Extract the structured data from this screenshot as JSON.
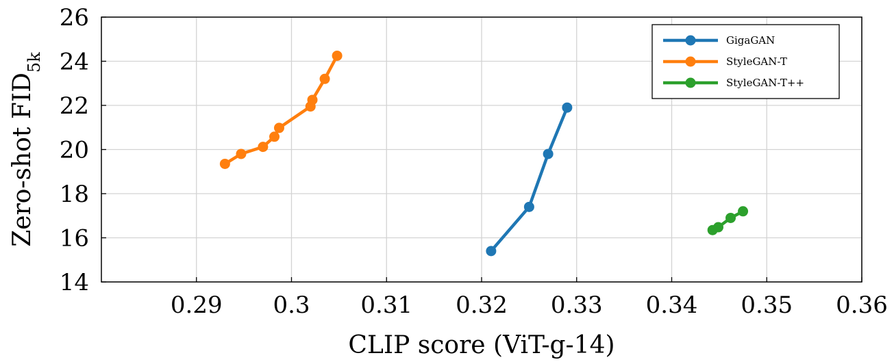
{
  "chart_data": {
    "type": "line",
    "xlabel": "CLIP score (ViT-g-14)",
    "ylabel": {
      "main": "Zero-shot FID",
      "subscript": "5k"
    },
    "xlim": [
      0.28,
      0.36
    ],
    "ylim": [
      14,
      26
    ],
    "xticks": [
      0.29,
      0.3,
      0.31,
      0.32,
      0.33,
      0.34,
      0.35,
      0.36
    ],
    "xtick_labels": [
      "0.29",
      "0.3",
      "0.31",
      "0.32",
      "0.33",
      "0.34",
      "0.35",
      "0.36"
    ],
    "yticks": [
      14,
      16,
      18,
      20,
      22,
      24,
      26
    ],
    "ytick_labels": [
      "14",
      "16",
      "18",
      "20",
      "22",
      "24",
      "26"
    ],
    "grid": true,
    "legend_position": "top-right",
    "series": [
      {
        "name": "GigaGAN",
        "color": "#1f77b4",
        "x": [
          0.321,
          0.325,
          0.327,
          0.329
        ],
        "y": [
          15.4,
          17.4,
          19.8,
          21.9
        ]
      },
      {
        "name": "StyleGAN-T",
        "color": "#ff7f0e",
        "x": [
          0.293,
          0.2947,
          0.297,
          0.2982,
          0.2987,
          0.302,
          0.3022,
          0.3035,
          0.3048
        ],
        "y": [
          19.35,
          19.8,
          20.12,
          20.58,
          20.98,
          21.95,
          22.25,
          23.2,
          24.25
        ]
      },
      {
        "name": "StyleGAN-T++",
        "color": "#2ca02c",
        "x": [
          0.3443,
          0.3449,
          0.3462,
          0.3475
        ],
        "y": [
          16.35,
          16.48,
          16.9,
          17.2
        ]
      }
    ]
  }
}
